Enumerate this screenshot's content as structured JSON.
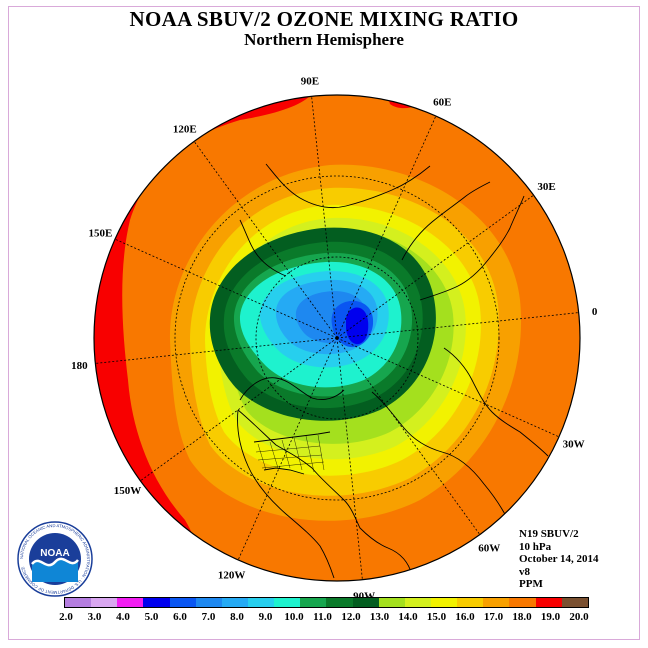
{
  "header": {
    "title": "NOAA SBUV/2 OZONE MIXING RATIO",
    "subtitle": "Northern Hemisphere"
  },
  "longitude_labels": [
    {
      "text": "90E",
      "lon": 90
    },
    {
      "text": "60E",
      "lon": 60
    },
    {
      "text": "30E",
      "lon": 30
    },
    {
      "text": "0",
      "lon": 0
    },
    {
      "text": "30W",
      "lon": -30
    },
    {
      "text": "60W",
      "lon": -60
    },
    {
      "text": "90W",
      "lon": -90
    },
    {
      "text": "120W",
      "lon": -120
    },
    {
      "text": "150W",
      "lon": -150
    },
    {
      "text": "180",
      "lon": 180
    },
    {
      "text": "150E",
      "lon": 150
    },
    {
      "text": "120E",
      "lon": 120
    }
  ],
  "info": {
    "satellite": "N19 SBUV/2",
    "pressure": "10 hPa",
    "date": "October 14, 2014",
    "version": "v8",
    "units": "PPM"
  },
  "logo": {
    "text": "NOAA",
    "ring_text": "NATIONAL OCEANIC AND ATMOSPHERIC ADMINISTRATION · U.S. DEPARTMENT OF COMMERCE"
  },
  "colorbar": {
    "labels": [
      "2.0",
      "3.0",
      "4.0",
      "5.0",
      "6.0",
      "7.0",
      "8.0",
      "9.0",
      "10.0",
      "11.0",
      "12.0",
      "13.0",
      "14.0",
      "15.0",
      "16.0",
      "17.0",
      "18.0",
      "19.0",
      "20.0"
    ],
    "colors": [
      "#b57ee0",
      "#d9a7f0",
      "#f21ef2",
      "#0000ee",
      "#0a56f2",
      "#1e88f0",
      "#25aaf4",
      "#27cfee",
      "#1ef2ce",
      "#16a64e",
      "#0a7a2a",
      "#035e20",
      "#a4e01e",
      "#d4f01e",
      "#f2f200",
      "#f8cc00",
      "#f8a000",
      "#f87800",
      "#f80000",
      "#7a5030"
    ]
  },
  "map": {
    "projection": "north-polar-stereographic",
    "contour_levels_ppm": [
      19,
      18,
      17,
      16,
      15,
      14,
      13,
      12,
      11,
      10,
      9,
      8,
      7,
      6,
      5
    ],
    "fill_colors": {
      "outer_band": "#f80000",
      "band_18": "#f87800",
      "band_17": "#f8a000",
      "band_16": "#f8cc00",
      "band_15": "#f2f200",
      "band_14": "#d4f01e",
      "band_13": "#a4e01e",
      "band_12": "#035e20",
      "band_11": "#0a7a2a",
      "band_10": "#16a64e",
      "band_9": "#1ef2ce",
      "band_8": "#27cfee",
      "band_7": "#25aaf4",
      "band_6": "#1e88f0",
      "band_5": "#0a56f2",
      "minimum": "#0000ee"
    }
  }
}
